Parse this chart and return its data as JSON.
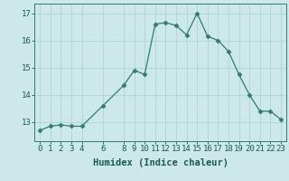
{
  "x": [
    0,
    1,
    2,
    3,
    4,
    6,
    8,
    9,
    10,
    11,
    12,
    13,
    14,
    15,
    16,
    17,
    18,
    19,
    20,
    21,
    22,
    23
  ],
  "y": [
    12.7,
    12.85,
    12.9,
    12.85,
    12.85,
    13.6,
    14.35,
    14.9,
    14.75,
    16.6,
    16.65,
    16.55,
    16.2,
    17.0,
    16.15,
    16.0,
    15.6,
    14.75,
    14.0,
    13.4,
    13.4,
    13.1
  ],
  "xlabel": "Humidex (Indice chaleur)",
  "xlim": [
    -0.5,
    23.5
  ],
  "ylim": [
    12.3,
    17.35
  ],
  "yticks": [
    13,
    14,
    15,
    16,
    17
  ],
  "xticks": [
    0,
    1,
    2,
    3,
    4,
    6,
    8,
    9,
    10,
    11,
    12,
    13,
    14,
    15,
    16,
    17,
    18,
    19,
    20,
    21,
    22,
    23
  ],
  "line_color": "#2e7d6e",
  "marker": "D",
  "marker_size": 2.5,
  "bg_color": "#cce8e8",
  "grid_color": "#aed4d4",
  "axis_color": "#2e7d6e",
  "label_color": "#1a5c52",
  "tick_fontsize": 6.5,
  "xlabel_fontsize": 7.5
}
